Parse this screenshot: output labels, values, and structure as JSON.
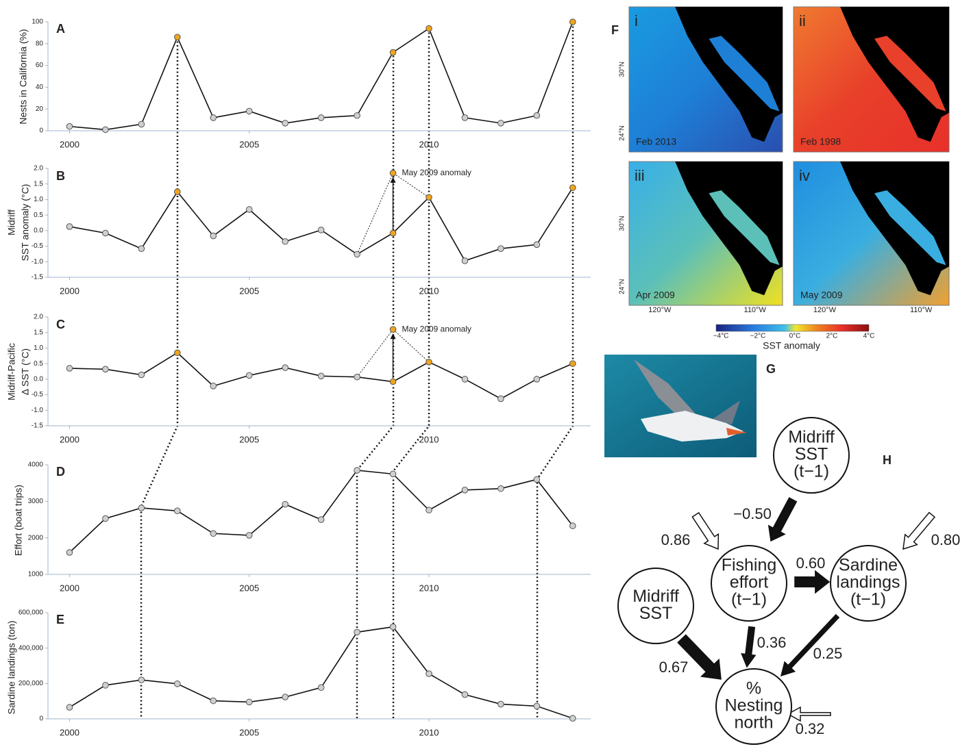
{
  "chart_data": [
    {
      "type": "line",
      "panel": "A",
      "ylabel": [
        "Nests in California (%)"
      ],
      "x": [
        2000,
        2001,
        2002,
        2003,
        2004,
        2005,
        2006,
        2007,
        2008,
        2009,
        2010,
        2011,
        2012,
        2013,
        2014
      ],
      "values": [
        4,
        1,
        6,
        86,
        12,
        18,
        7,
        12,
        14,
        72,
        94,
        12,
        7,
        14,
        100
      ],
      "xlim": [
        1999.4,
        2014.5
      ],
      "xticks": [
        2000,
        2005,
        2010
      ],
      "ylim": [
        0,
        100
      ],
      "yticks": [
        0,
        20,
        40,
        60,
        80,
        100
      ],
      "color": "#111111",
      "marker_color": "#d0d0d0",
      "highlight_color": "#f0a51e",
      "highlight_x": [
        2003,
        2009,
        2010,
        2014
      ]
    },
    {
      "type": "line",
      "panel": "B",
      "ylabel": [
        "Midriff",
        "SST anomaly (°C)"
      ],
      "x": [
        2000,
        2001,
        2002,
        2003,
        2004,
        2005,
        2006,
        2007,
        2008,
        2009,
        2010,
        2011,
        2012,
        2013,
        2014
      ],
      "values": [
        0.13,
        -0.08,
        -0.58,
        1.25,
        -0.17,
        0.68,
        -0.35,
        0.02,
        -0.76,
        -0.08,
        1.07,
        -0.97,
        -0.58,
        -0.45,
        1.38
      ],
      "xlim": [
        1999.4,
        2014.5
      ],
      "xticks": [
        2000,
        2005,
        2010
      ],
      "ylim": [
        -1.5,
        2.0
      ],
      "yticks": [
        {
          "value": 2.0,
          "label": "2.0"
        },
        1.5,
        {
          "value": 1.0,
          "label": "1.0"
        },
        0.5,
        {
          "value": 0.0,
          "label": "0.0"
        },
        -0.5,
        {
          "value": -1.0,
          "label": "-1.0"
        },
        -1.5
      ],
      "color": "#111111",
      "marker_color": "#d0d0d0",
      "highlight_color": "#f0a51e",
      "highlight_x": [
        2003,
        2009,
        2010,
        2014
      ],
      "annotation": {
        "text": "May 2009 anomaly",
        "x": 2009,
        "value": 1.85
      }
    },
    {
      "type": "line",
      "panel": "C",
      "ylabel": [
        "Midriff-Pacific",
        "Δ SST (°C)"
      ],
      "x": [
        2000,
        2001,
        2002,
        2003,
        2004,
        2005,
        2006,
        2007,
        2008,
        2009,
        2010,
        2011,
        2012,
        2013,
        2014
      ],
      "values": [
        0.35,
        0.32,
        0.14,
        0.85,
        -0.22,
        0.12,
        0.37,
        0.1,
        0.07,
        -0.08,
        0.55,
        0.0,
        -0.63,
        0.0,
        0.5
      ],
      "xlim": [
        1999.4,
        2014.5
      ],
      "xticks": [
        2000,
        2005,
        2010
      ],
      "ylim": [
        -1.5,
        2.0
      ],
      "yticks": [
        {
          "value": 2.0,
          "label": "2.0"
        },
        1.5,
        {
          "value": 1.0,
          "label": "1.0"
        },
        0.5,
        {
          "value": 0.0,
          "label": "0.0"
        },
        -0.5,
        {
          "value": -1.0,
          "label": "-1.0"
        },
        -1.5
      ],
      "color": "#111111",
      "marker_color": "#d0d0d0",
      "highlight_color": "#f0a51e",
      "highlight_x": [
        2003,
        2009,
        2010,
        2014
      ],
      "annotation": {
        "text": "May 2009 anomaly",
        "x": 2009,
        "value": 1.6
      }
    },
    {
      "type": "line",
      "panel": "D",
      "ylabel": [
        "Effort (boat trips)"
      ],
      "x": [
        2000,
        2001,
        2002,
        2003,
        2004,
        2005,
        2006,
        2007,
        2008,
        2009,
        2010,
        2011,
        2012,
        2013,
        2014
      ],
      "values": [
        1600,
        2530,
        2820,
        2740,
        2120,
        2070,
        2920,
        2500,
        3850,
        3750,
        2760,
        3310,
        3350,
        3600,
        2330
      ],
      "xlim": [
        1999.4,
        2014.5
      ],
      "xticks": [
        2000,
        2005,
        2010
      ],
      "ylim": [
        1000,
        4000
      ],
      "yticks": [
        1000,
        2000,
        3000,
        4000
      ],
      "color": "#111111",
      "marker_color": "#d0d0d0"
    },
    {
      "type": "line",
      "panel": "E",
      "ylabel": [
        "Sardine landings (ton)"
      ],
      "x": [
        2000,
        2001,
        2002,
        2003,
        2004,
        2005,
        2006,
        2007,
        2008,
        2009,
        2010,
        2011,
        2012,
        2013,
        2014
      ],
      "values": [
        65000,
        190000,
        220000,
        198000,
        102000,
        95000,
        123000,
        177000,
        490000,
        520000,
        255000,
        137000,
        83000,
        72000,
        3000
      ],
      "xlim": [
        1999.4,
        2014.5
      ],
      "xticks": [
        2000,
        2005,
        2010
      ],
      "ylim": [
        0,
        600000
      ],
      "yticks": [
        0,
        {
          "value": 200000,
          "label": "200,000"
        },
        {
          "value": 400000,
          "label": "400,000"
        },
        {
          "value": 600000,
          "label": "600,000"
        }
      ],
      "color": "#111111",
      "marker_color": "#d0d0d0"
    }
  ],
  "maps": {
    "panel": "F",
    "lat_labels": [
      "30°N",
      "24°N"
    ],
    "lon_labels": [
      "120°W",
      "110°W"
    ],
    "items": [
      {
        "label": "i",
        "date": "Feb 2013",
        "colors": [
          "#1a9be0",
          "#1e7fd6",
          "#2a4fb0"
        ]
      },
      {
        "label": "ii",
        "date": "Feb 1998",
        "colors": [
          "#f07a30",
          "#e8402a",
          "#e8302a"
        ]
      },
      {
        "label": "iii",
        "date": "Apr 2009",
        "colors": [
          "#38b0e8",
          "#5cc0b8",
          "#f0e020"
        ]
      },
      {
        "label": "iv",
        "date": "May 2009",
        "colors": [
          "#1f8ee0",
          "#3aaee0",
          "#f0a030"
        ]
      }
    ],
    "colorbar": {
      "labels": [
        "−4°C",
        "−2°C",
        "0°C",
        "2°C",
        "4°C"
      ],
      "title": "SST anomaly"
    }
  },
  "photo": {
    "panel": "G"
  },
  "diagram": {
    "panel": "H",
    "nodes": [
      {
        "lines": [
          "Midriff",
          "SST",
          "(t−1)"
        ]
      },
      {
        "lines": [
          "Fishing",
          "effort",
          "(t−1)"
        ]
      },
      {
        "lines": [
          "Sardine",
          "landings",
          "(t−1)"
        ]
      },
      {
        "lines": [
          "Midriff",
          "SST"
        ]
      },
      {
        "lines": [
          "%",
          "Nesting",
          "north"
        ]
      }
    ],
    "paths": [
      {
        "value": -0.5,
        "label": "−0.50"
      },
      {
        "value": 0.6,
        "label": "0.60"
      },
      0.36,
      0.25,
      0.67
    ],
    "residuals": [
      0.86,
      {
        "value": 0.8,
        "label": "0.80"
      },
      0.32
    ]
  }
}
